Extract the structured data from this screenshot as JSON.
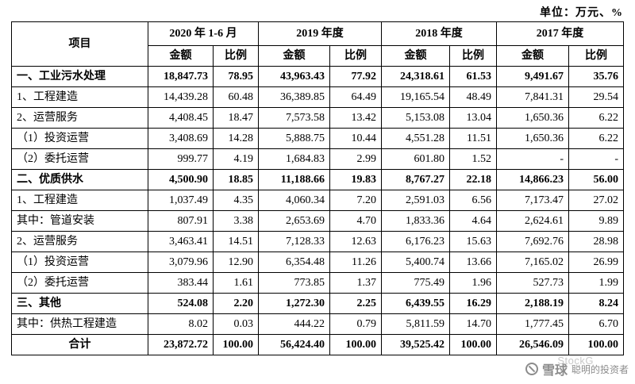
{
  "unit_label": "单位：万元、%",
  "table": {
    "item_header": "项目",
    "periods": [
      {
        "label": "2020 年 1-6 月"
      },
      {
        "label": "2019 年度"
      },
      {
        "label": "2018 年度"
      },
      {
        "label": "2017 年度"
      }
    ],
    "amount_header": "金额",
    "ratio_header": "比例",
    "rows": [
      {
        "label": "一、工业污水处理",
        "bold": true,
        "center": false,
        "values": [
          "18,847.73",
          "78.95",
          "43,963.43",
          "77.92",
          "24,318.61",
          "61.53",
          "9,491.67",
          "35.76"
        ]
      },
      {
        "label": "1、工程建造",
        "bold": false,
        "center": false,
        "values": [
          "14,439.28",
          "60.48",
          "36,389.85",
          "64.49",
          "19,165.54",
          "48.49",
          "7,841.31",
          "29.54"
        ]
      },
      {
        "label": "2、运营服务",
        "bold": false,
        "center": false,
        "values": [
          "4,408.45",
          "18.47",
          "7,573.58",
          "13.42",
          "5,153.08",
          "13.04",
          "1,650.36",
          "6.22"
        ]
      },
      {
        "label": "（1）投资运营",
        "bold": false,
        "center": false,
        "values": [
          "3,408.69",
          "14.28",
          "5,888.75",
          "10.44",
          "4,551.28",
          "11.51",
          "1,650.36",
          "6.22"
        ]
      },
      {
        "label": "（2）委托运营",
        "bold": false,
        "center": false,
        "values": [
          "999.77",
          "4.19",
          "1,684.83",
          "2.99",
          "601.80",
          "1.52",
          "-",
          "-"
        ]
      },
      {
        "label": "二、优质供水",
        "bold": true,
        "center": false,
        "values": [
          "4,500.90",
          "18.85",
          "11,188.66",
          "19.83",
          "8,767.27",
          "22.18",
          "14,866.23",
          "56.00"
        ]
      },
      {
        "label": "1、工程建造",
        "bold": false,
        "center": false,
        "values": [
          "1,037.49",
          "4.35",
          "4,060.34",
          "7.20",
          "2,591.03",
          "6.56",
          "7,173.47",
          "27.02"
        ]
      },
      {
        "label": "其中：管道安装",
        "bold": false,
        "center": false,
        "values": [
          "807.91",
          "3.38",
          "2,653.69",
          "4.70",
          "1,833.36",
          "4.64",
          "2,624.61",
          "9.89"
        ]
      },
      {
        "label": "2、运营服务",
        "bold": false,
        "center": false,
        "values": [
          "3,463.41",
          "14.51",
          "7,128.33",
          "12.63",
          "6,176.23",
          "15.63",
          "7,692.76",
          "28.98"
        ]
      },
      {
        "label": "（1）投资运营",
        "bold": false,
        "center": false,
        "values": [
          "3,079.96",
          "12.90",
          "6,354.48",
          "11.26",
          "5,400.74",
          "13.66",
          "7,165.02",
          "26.99"
        ]
      },
      {
        "label": "（2）委托运营",
        "bold": false,
        "center": false,
        "values": [
          "383.44",
          "1.61",
          "773.85",
          "1.37",
          "775.49",
          "1.96",
          "527.73",
          "1.99"
        ]
      },
      {
        "label": "三、其他",
        "bold": true,
        "center": false,
        "values": [
          "524.08",
          "2.20",
          "1,272.30",
          "2.25",
          "6,439.55",
          "16.29",
          "2,188.19",
          "8.24"
        ]
      },
      {
        "label": "其中：供热工程建造",
        "bold": false,
        "center": false,
        "values": [
          "8.02",
          "0.03",
          "444.22",
          "0.79",
          "5,811.59",
          "14.70",
          "1,777.45",
          "6.70"
        ]
      },
      {
        "label": "合计",
        "bold": true,
        "center": true,
        "values": [
          "23,872.72",
          "100.00",
          "56,424.40",
          "100.00",
          "39,525.42",
          "100.00",
          "26,546.09",
          "100.00"
        ]
      }
    ]
  },
  "watermark": {
    "brand": "雪球",
    "tagline": "聪明的投资者",
    "overlay_text": "StockG"
  }
}
